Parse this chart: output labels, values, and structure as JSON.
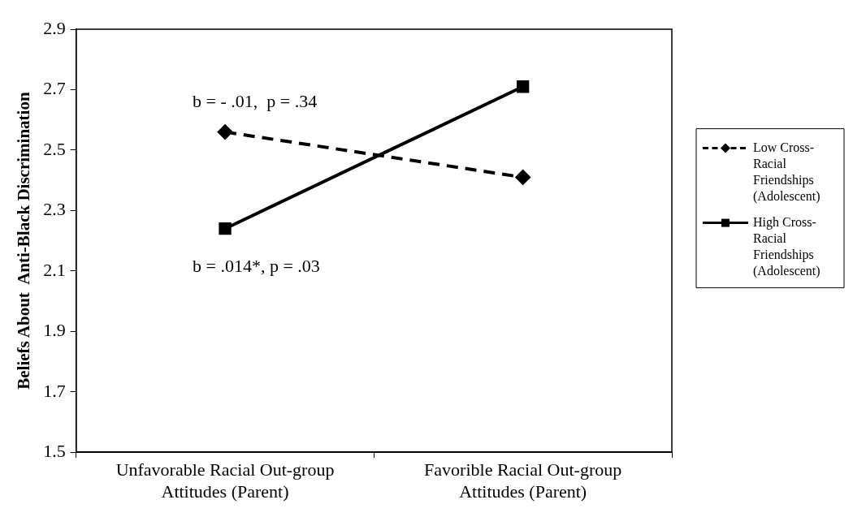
{
  "chart_data": {
    "type": "line",
    "ylabel": "Beliefs About  Anti-Black Discrimination",
    "categories": [
      "Unfavorable Racial Out-group Attitudes (Parent)",
      "Favorible Racial Out-group Attitudes (Parent)"
    ],
    "series": [
      {
        "name": "Low Cross-Racial Friendships (Adolescent)",
        "color": "#000000",
        "values": [
          2.56,
          2.41
        ],
        "marker": "diamond",
        "line_style": "dashed"
      },
      {
        "name": "High Cross-Racial Friendships (Adolescent)",
        "color": "#000000",
        "values": [
          2.24,
          2.71
        ],
        "marker": "square",
        "line_style": "solid"
      }
    ],
    "ylim": [
      1.5,
      2.9
    ],
    "yticks": [
      1.5,
      1.7,
      1.9,
      2.1,
      2.3,
      2.5,
      2.7,
      2.9
    ],
    "grid": false,
    "legend": "right",
    "annotations": [
      "b = - .01,  p = .34",
      "b = .014*, p = .03"
    ]
  }
}
